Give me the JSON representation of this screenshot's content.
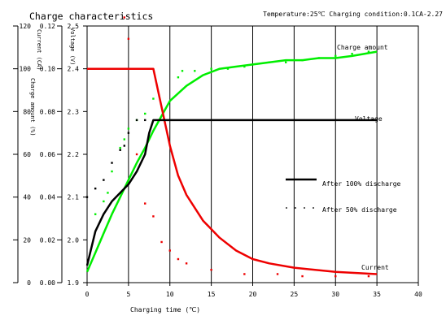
{
  "chart_data": {
    "type": "line",
    "title": "Charge characteristics",
    "condition_note": "Temperature:25℃ Charging condition:0.1CA-2.27",
    "xlabel": "Charging time (℃)",
    "y_axis_labels": {
      "charge_amount": "Charge amount (%)",
      "current": "Current (CA)",
      "voltage": "Voltage (V)"
    },
    "xlim": [
      0,
      40
    ],
    "x_ticks": [
      "0",
      "5",
      "10",
      "15",
      "20",
      "25",
      "30",
      "35",
      "40"
    ],
    "charge_amount_ticks": [
      "0",
      "20",
      "40",
      "60",
      "80",
      "100",
      "120"
    ],
    "current_ticks": [
      "0.00",
      "0.02",
      "0.04",
      "0.06",
      "0.08",
      "0.10",
      "0.12"
    ],
    "voltage_ticks": [
      "1.9",
      "2.0",
      "2.1",
      "2.2",
      "2.3",
      "2.4",
      "2.5"
    ],
    "ylim_charge_amount": [
      0,
      120
    ],
    "ylim_current": [
      0,
      0.12
    ],
    "ylim_voltage": [
      1.9,
      2.5
    ],
    "grid": "vertical",
    "annotations": {
      "charge_amount": "Charge amount",
      "voltage": "Voltage",
      "current": "Current"
    },
    "legend": {
      "position": "right-middle",
      "entries": [
        {
          "label": "After 100% discharge",
          "style": "solid"
        },
        {
          "label": "After 50% discharge",
          "style": "dashed"
        }
      ]
    },
    "series": [
      {
        "name": "Charge amount",
        "condition": "After 100% discharge",
        "color": "#00ee00",
        "axis": "charge_amount",
        "style": "solid",
        "x": [
          0,
          1,
          2,
          3,
          4,
          5,
          6,
          7,
          8,
          9,
          10,
          12,
          14,
          16,
          18,
          20,
          22,
          24,
          26,
          28,
          30,
          32,
          35
        ],
        "y": [
          5,
          14,
          23,
          32,
          40,
          48,
          56,
          63,
          71,
          78,
          85,
          92,
          97,
          100,
          101,
          102,
          103,
          104,
          104,
          105,
          105,
          106,
          108
        ]
      },
      {
        "name": "Voltage",
        "condition": "After 100% discharge",
        "color": "#000000",
        "axis": "voltage",
        "style": "solid",
        "x": [
          0,
          1,
          2,
          3,
          4,
          5,
          6,
          7,
          7.5,
          8,
          10,
          15,
          20,
          25,
          30,
          35
        ],
        "y": [
          1.94,
          2.02,
          2.06,
          2.09,
          2.11,
          2.13,
          2.16,
          2.2,
          2.25,
          2.28,
          2.28,
          2.28,
          2.28,
          2.28,
          2.28,
          2.28
        ]
      },
      {
        "name": "Current",
        "condition": "After 100% discharge",
        "color": "#ee0000",
        "axis": "current",
        "style": "solid",
        "x": [
          0,
          2,
          4,
          6,
          8,
          9,
          10,
          11,
          12,
          14,
          16,
          18,
          20,
          22,
          25,
          30,
          35
        ],
        "y": [
          0.1,
          0.1,
          0.1,
          0.1,
          0.1,
          0.082,
          0.064,
          0.05,
          0.041,
          0.029,
          0.021,
          0.015,
          0.011,
          0.009,
          0.007,
          0.005,
          0.004
        ]
      },
      {
        "name": "Charge amount",
        "condition": "After 50% discharge",
        "color": "#00ee00",
        "axis": "charge_amount",
        "style": "dashed",
        "x": [
          1,
          2,
          2.5,
          3,
          4,
          4.5,
          5,
          6,
          7,
          8,
          11,
          11.5,
          13,
          15,
          17,
          19,
          20,
          22,
          24,
          26,
          28,
          30,
          32,
          34
        ],
        "y": [
          32,
          38,
          42,
          52,
          63,
          67,
          72,
          76,
          79,
          86,
          96,
          99,
          99,
          100,
          100,
          101,
          102,
          103,
          103,
          104,
          105,
          106,
          107,
          108
        ]
      },
      {
        "name": "Voltage",
        "condition": "After 50% discharge",
        "color": "#000000",
        "axis": "voltage",
        "style": "dashed",
        "x": [
          0,
          1,
          2,
          3,
          4,
          4.5,
          5,
          6,
          7
        ],
        "y": [
          2.1,
          2.12,
          2.14,
          2.18,
          2.21,
          2.22,
          2.25,
          2.28,
          2.28
        ]
      },
      {
        "name": "Current",
        "condition": "After 50% discharge",
        "color": "#ee0000",
        "axis": "current",
        "style": "dashed",
        "x": [
          4.5,
          5,
          6,
          7,
          8,
          9,
          10,
          11,
          12,
          15,
          19,
          23,
          26,
          30,
          34
        ],
        "y": [
          0.124,
          0.114,
          0.06,
          0.037,
          0.031,
          0.019,
          0.015,
          0.011,
          0.009,
          0.006,
          0.004,
          0.004,
          0.003,
          0.003,
          0.003
        ]
      }
    ]
  }
}
